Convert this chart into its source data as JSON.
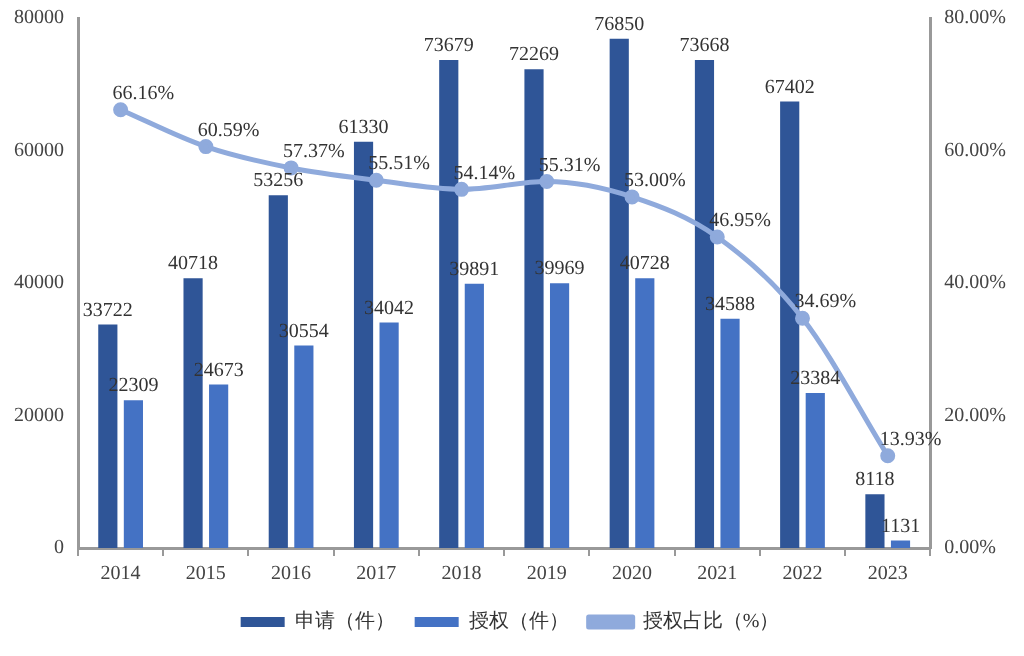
{
  "chart_data": {
    "type": "bar",
    "categories": [
      "2014",
      "2015",
      "2016",
      "2017",
      "2018",
      "2019",
      "2020",
      "2021",
      "2022",
      "2023"
    ],
    "series": [
      {
        "name": "申请（件）",
        "color": "#2f5597",
        "values": [
          33722,
          40718,
          53256,
          61330,
          73679,
          72269,
          76850,
          73668,
          67402,
          8118
        ],
        "value_labels": [
          "33722",
          "40718",
          "53256",
          "61330",
          "73679",
          "72269",
          "76850",
          "73668",
          "67402",
          "8118"
        ]
      },
      {
        "name": "授权（件）",
        "color": "#4472c4",
        "values": [
          22309,
          24673,
          30554,
          34042,
          39891,
          39969,
          40728,
          34588,
          23384,
          1131
        ],
        "value_labels": [
          "22309",
          "24673",
          "30554",
          "34042",
          "39891",
          "39969",
          "40728",
          "34588",
          "23384",
          "1131"
        ]
      },
      {
        "name": "授权占比（%）",
        "type": "line",
        "axis": "y2",
        "color": "#8faadc",
        "marker": "circle",
        "values": [
          66.16,
          60.59,
          57.37,
          55.51,
          54.14,
          55.31,
          53.0,
          46.95,
          34.69,
          13.93
        ],
        "value_labels": [
          "66.16%",
          "60.59%",
          "57.37%",
          "55.51%",
          "54.14%",
          "55.31%",
          "53.00%",
          "46.95%",
          "34.69%",
          "13.93%"
        ]
      }
    ],
    "ylim": [
      0,
      80000
    ],
    "yticks": [
      0,
      20000,
      40000,
      60000,
      80000
    ],
    "y2lim": [
      0,
      80
    ],
    "y2ticks": [
      {
        "value": 0,
        "label": "0.00%"
      },
      {
        "value": 20,
        "label": "20.00%"
      },
      {
        "value": 40,
        "label": "40.00%"
      },
      {
        "value": 60,
        "label": "60.00%"
      },
      {
        "value": 80,
        "label": "80.00%"
      }
    ],
    "grid": false,
    "legend": "bottom"
  }
}
